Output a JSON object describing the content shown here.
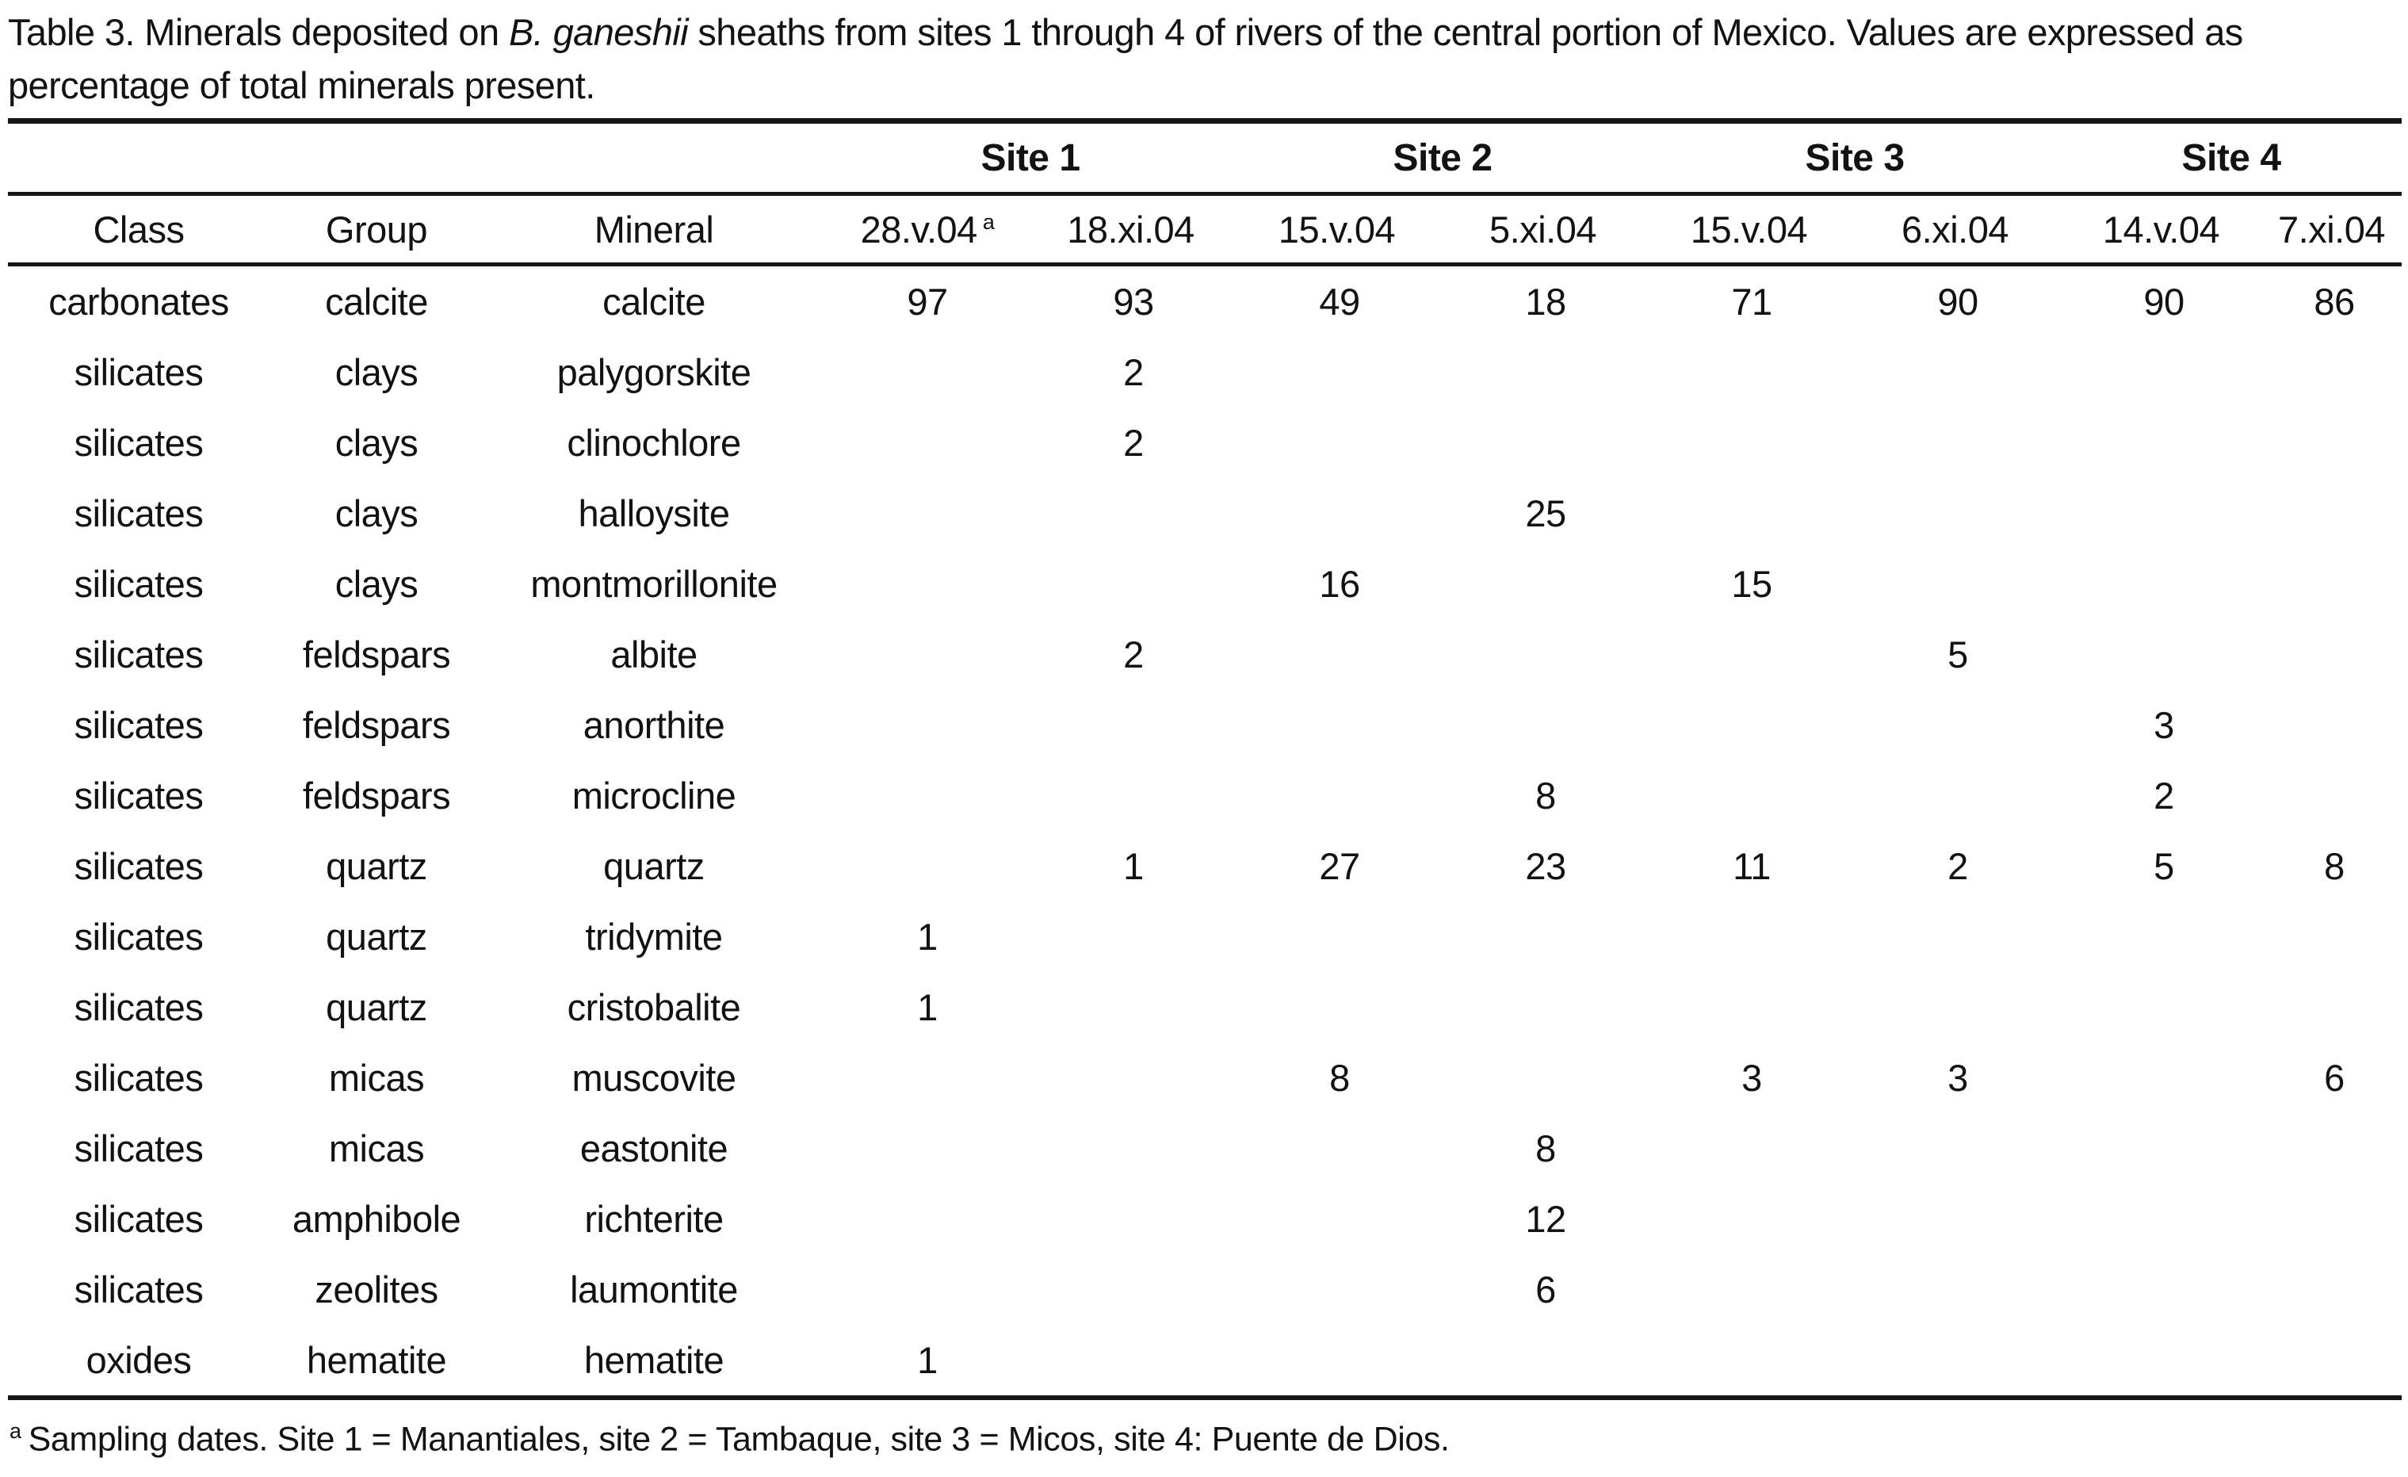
{
  "caption": {
    "before_italic": "Table 3. Minerals deposited on ",
    "italic": "B. ganeshii",
    "after_italic": " sheaths from sites 1 through 4 of rivers of the central portion of Mexico. Values are expressed as percentage of total minerals present."
  },
  "chart_data": {
    "type": "table",
    "site_groups": [
      "Site 1",
      "Site 2",
      "Site 3",
      "Site 4"
    ],
    "row_headers": [
      "Class",
      "Group",
      "Mineral"
    ],
    "date_columns": [
      {
        "label": "28.v.04",
        "sup": "a"
      },
      {
        "label": "18.xi.04",
        "sup": ""
      },
      {
        "label": "15.v.04",
        "sup": ""
      },
      {
        "label": "5.xi.04",
        "sup": ""
      },
      {
        "label": "15.v.04",
        "sup": ""
      },
      {
        "label": "6.xi.04",
        "sup": ""
      },
      {
        "label": "14.v.04",
        "sup": ""
      },
      {
        "label": "7.xi.04",
        "sup": ""
      }
    ],
    "rows": [
      {
        "class": "carbonates",
        "group": "calcite",
        "mineral": "calcite",
        "values": [
          "97",
          "93",
          "49",
          "18",
          "71",
          "90",
          "90",
          "86"
        ]
      },
      {
        "class": "silicates",
        "group": "clays",
        "mineral": "palygorskite",
        "values": [
          "",
          "2",
          "",
          "",
          "",
          "",
          "",
          ""
        ]
      },
      {
        "class": "silicates",
        "group": "clays",
        "mineral": "clinochlore",
        "values": [
          "",
          "2",
          "",
          "",
          "",
          "",
          "",
          ""
        ]
      },
      {
        "class": "silicates",
        "group": "clays",
        "mineral": "halloysite",
        "values": [
          "",
          "",
          "",
          "25",
          "",
          "",
          "",
          ""
        ]
      },
      {
        "class": "silicates",
        "group": "clays",
        "mineral": "montmorillonite",
        "values": [
          "",
          "",
          "16",
          "",
          "15",
          "",
          "",
          ""
        ]
      },
      {
        "class": "silicates",
        "group": "feldspars",
        "mineral": "albite",
        "values": [
          "",
          "2",
          "",
          "",
          "",
          "5",
          "",
          ""
        ]
      },
      {
        "class": "silicates",
        "group": "feldspars",
        "mineral": "anorthite",
        "values": [
          "",
          "",
          "",
          "",
          "",
          "",
          "3",
          ""
        ]
      },
      {
        "class": "silicates",
        "group": "feldspars",
        "mineral": "microcline",
        "values": [
          "",
          "",
          "",
          "8",
          "",
          "",
          "2",
          ""
        ]
      },
      {
        "class": "silicates",
        "group": "quartz",
        "mineral": "quartz",
        "values": [
          "",
          "1",
          "27",
          "23",
          "11",
          "2",
          "5",
          "8"
        ]
      },
      {
        "class": "silicates",
        "group": "quartz",
        "mineral": "tridymite",
        "values": [
          "1",
          "",
          "",
          "",
          "",
          "",
          "",
          ""
        ]
      },
      {
        "class": "silicates",
        "group": "quartz",
        "mineral": "cristobalite",
        "values": [
          "1",
          "",
          "",
          "",
          "",
          "",
          "",
          ""
        ]
      },
      {
        "class": "silicates",
        "group": "micas",
        "mineral": "muscovite",
        "values": [
          "",
          "",
          "8",
          "",
          "3",
          "3",
          "",
          "6"
        ]
      },
      {
        "class": "silicates",
        "group": "micas",
        "mineral": "eastonite",
        "values": [
          "",
          "",
          "",
          "8",
          "",
          "",
          "",
          ""
        ]
      },
      {
        "class": "silicates",
        "group": "amphibole",
        "mineral": "richterite",
        "values": [
          "",
          "",
          "",
          "12",
          "",
          "",
          "",
          ""
        ]
      },
      {
        "class": "silicates",
        "group": "zeolites",
        "mineral": "laumontite",
        "values": [
          "",
          "",
          "",
          "6",
          "",
          "",
          "",
          ""
        ]
      },
      {
        "class": "oxides",
        "group": "hematite",
        "mineral": "hematite",
        "values": [
          "1",
          "",
          "",
          "",
          "",
          "",
          "",
          ""
        ]
      }
    ]
  },
  "footnote": {
    "marker": "a",
    "text": "Sampling dates. Site 1 = Manantiales, site 2 = Tambaque, site 3 = Micos, site 4: Puente de Dios."
  },
  "colors": {
    "text": "#121212",
    "rule": "#161616",
    "background": "#ffffff"
  }
}
